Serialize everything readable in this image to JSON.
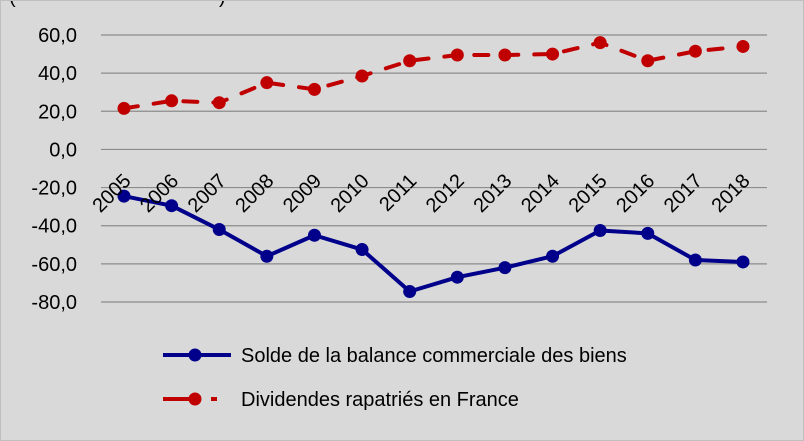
{
  "chart_data": {
    "type": "line",
    "categories": [
      "2005",
      "2006",
      "2007",
      "2008",
      "2009",
      "2010",
      "2011",
      "2012",
      "2013",
      "2014",
      "2015",
      "2016",
      "2017",
      "2018"
    ],
    "series": [
      {
        "name": "Solde de la balance commerciale des biens",
        "values": [
          -24.5,
          -29.5,
          -42,
          -56,
          -45,
          -52.5,
          -74.5,
          -67,
          -62,
          -56,
          -42.5,
          -44,
          -58,
          -59
        ],
        "color": "#00008b",
        "style": "solid"
      },
      {
        "name": "Dividendes rapatriés en France",
        "values": [
          21.5,
          25.5,
          24.5,
          35,
          31.5,
          38.5,
          46.5,
          49.5,
          49.5,
          50,
          56,
          46.5,
          51.5,
          54
        ],
        "color": "#c00000",
        "style": "dashed"
      }
    ],
    "ylim": [
      -80,
      60
    ],
    "yticks": [
      "60,0",
      "40,0",
      "20,0",
      "0,0",
      "-20,0",
      "-40,0",
      "-60,0",
      "-80,0"
    ],
    "ytick_values": [
      60,
      40,
      20,
      0,
      -20,
      -40,
      -60,
      -80
    ],
    "grid": true,
    "legend_position": "bottom",
    "top_fragment": "(",
    "top_fragment_end": ")"
  }
}
